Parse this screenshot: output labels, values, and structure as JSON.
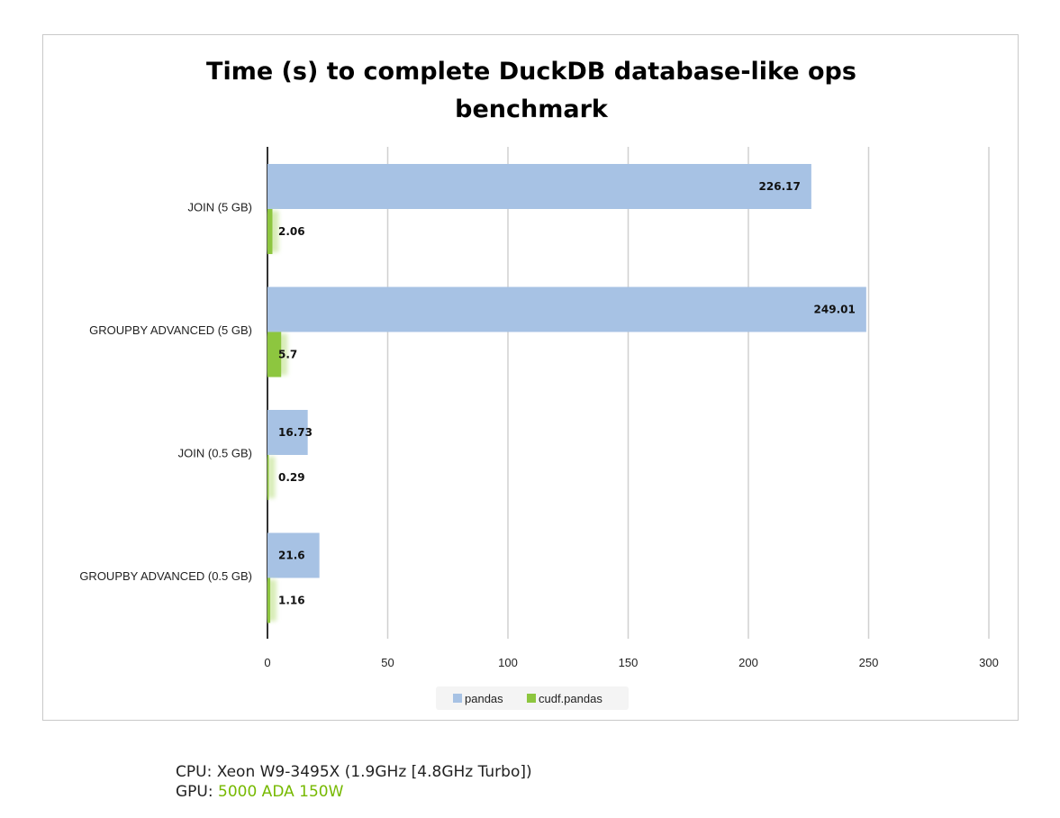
{
  "chart_data": {
    "type": "bar",
    "orientation": "horizontal",
    "title_lines": [
      "Time (s) to complete DuckDB database-like ops",
      "benchmark"
    ],
    "categories": [
      "JOIN (5 GB)",
      "GROUPBY ADVANCED (5 GB)",
      "JOIN (0.5 GB)",
      "GROUPBY ADVANCED (0.5 GB)"
    ],
    "series": [
      {
        "name": "pandas",
        "values": [
          226.17,
          249.01,
          16.73,
          21.6
        ],
        "color": "#a7c2e4"
      },
      {
        "name": "cudf.pandas",
        "values": [
          2.06,
          5.7,
          0.29,
          1.16
        ],
        "color": "#8dc63f"
      }
    ],
    "data_labels": {
      "pandas": [
        "226.17",
        "249.01",
        "16.73",
        "21.6"
      ],
      "cudf.pandas": [
        "2.06",
        "5.7",
        "0.29",
        "1.16"
      ]
    },
    "xlim": [
      0,
      300
    ],
    "x_ticks": [
      0,
      50,
      100,
      150,
      200,
      250,
      300
    ],
    "grid": true,
    "legend_position": "bottom"
  },
  "footer": {
    "cpu_label": "CPU:",
    "cpu_value": "Xeon W9-3495X (1.9GHz [4.8GHz Turbo])",
    "gpu_label": "GPU:",
    "gpu_value": "5000 ADA 150W"
  },
  "colors": {
    "gpu_accent": "#76b900",
    "grid": "#d0d0d0",
    "axis": "#333333"
  }
}
